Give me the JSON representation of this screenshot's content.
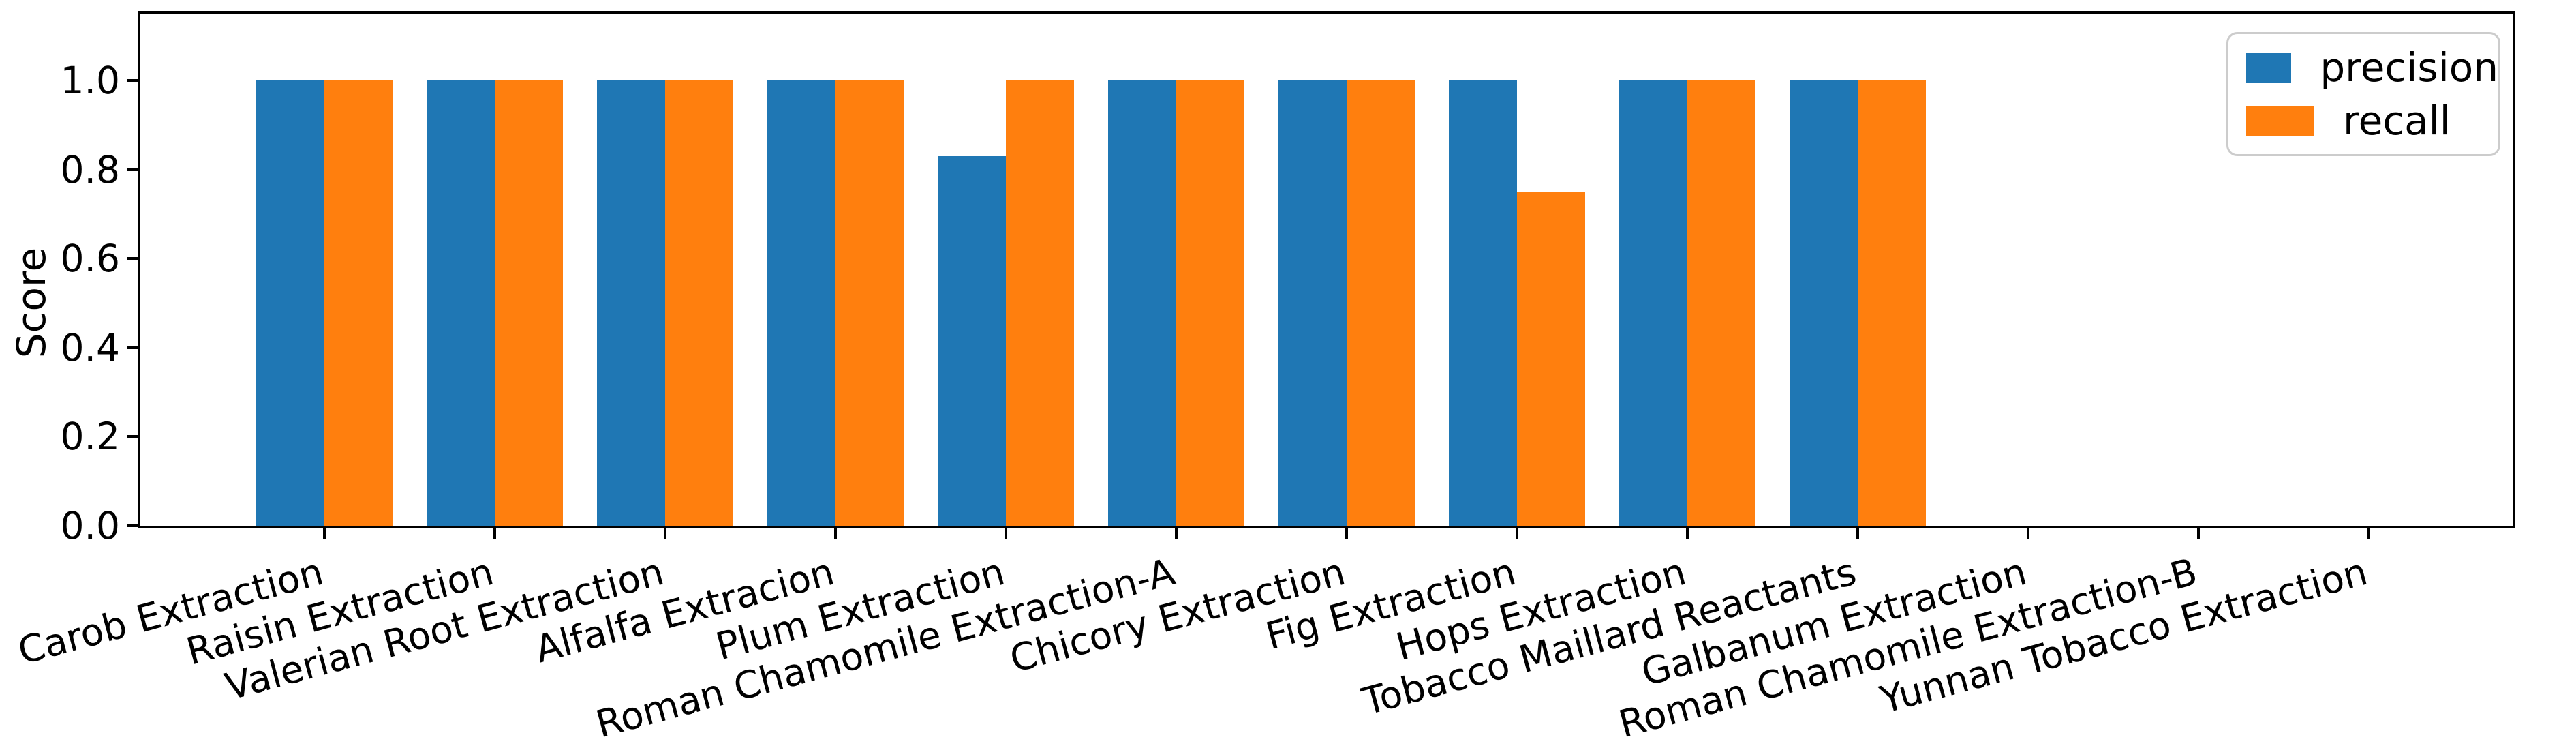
{
  "chart_data": {
    "type": "bar",
    "title": "",
    "xlabel": "",
    "ylabel": "Score",
    "categories": [
      "Carob Extraction",
      "Raisin Extraction",
      "Valerian Root Extraction",
      "Alfalfa Extracion",
      "Plum Extraction",
      "Roman Chamomile Extraction-A",
      "Chicory Extraction",
      "Fig Extraction",
      "Hops Extraction",
      "Tobacco Maillard Reactants",
      "Galbanum Extraction",
      "Roman Chamomile Extraction-B",
      "Yunnan Tobacco Extraction"
    ],
    "series": [
      {
        "name": "precision",
        "color": "#1f77b4",
        "values": [
          1.0,
          1.0,
          1.0,
          1.0,
          0.83,
          1.0,
          1.0,
          1.0,
          1.0,
          1.0,
          0.0,
          0.0,
          0.0
        ]
      },
      {
        "name": "recall",
        "color": "#ff7f0e",
        "values": [
          1.0,
          1.0,
          1.0,
          1.0,
          1.0,
          1.0,
          1.0,
          0.75,
          1.0,
          1.0,
          0.0,
          0.0,
          0.0
        ]
      }
    ],
    "ytick_labels": [
      "0.0",
      "0.2",
      "0.4",
      "0.6",
      "0.8",
      "1.0"
    ],
    "ytick_values": [
      0,
      0.2,
      0.4,
      0.6,
      0.8,
      1.0
    ],
    "ylim": [
      0,
      1.15
    ],
    "grid": false,
    "xtick_rotation_deg": 15,
    "legend": {
      "position": "upper right",
      "entries": [
        {
          "label": "precision",
          "color": "#1f77b4"
        },
        {
          "label": "recall",
          "color": "#ff7f0e"
        }
      ]
    }
  }
}
